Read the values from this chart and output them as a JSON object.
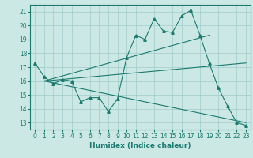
{
  "xlabel": "Humidex (Indice chaleur)",
  "background_color": "#cce8e5",
  "grid_color": "#a0ccca",
  "line_color": "#1a7a6e",
  "xlim": [
    -0.5,
    23.5
  ],
  "ylim": [
    12.5,
    21.5
  ],
  "yticks": [
    13,
    14,
    15,
    16,
    17,
    18,
    19,
    20,
    21
  ],
  "xticks": [
    0,
    1,
    2,
    3,
    4,
    5,
    6,
    7,
    8,
    9,
    10,
    11,
    12,
    13,
    14,
    15,
    16,
    17,
    18,
    19,
    20,
    21,
    22,
    23
  ],
  "main_line_x": [
    0,
    1,
    2,
    3,
    4,
    5,
    6,
    7,
    8,
    9,
    10,
    11,
    12,
    13,
    14,
    15,
    16,
    17,
    18,
    19,
    20,
    21,
    22,
    23
  ],
  "main_line_y": [
    17.3,
    16.3,
    15.8,
    16.1,
    16.0,
    14.5,
    14.8,
    14.8,
    13.8,
    14.7,
    17.7,
    19.3,
    19.0,
    20.5,
    19.6,
    19.5,
    20.7,
    21.1,
    19.3,
    17.3,
    15.5,
    14.2,
    13.0,
    12.8
  ],
  "trend1_x": [
    1,
    19
  ],
  "trend1_y": [
    16.0,
    19.3
  ],
  "trend2_x": [
    1,
    23
  ],
  "trend2_y": [
    16.0,
    17.3
  ],
  "trend3_x": [
    1,
    23
  ],
  "trend3_y": [
    16.0,
    13.0
  ]
}
